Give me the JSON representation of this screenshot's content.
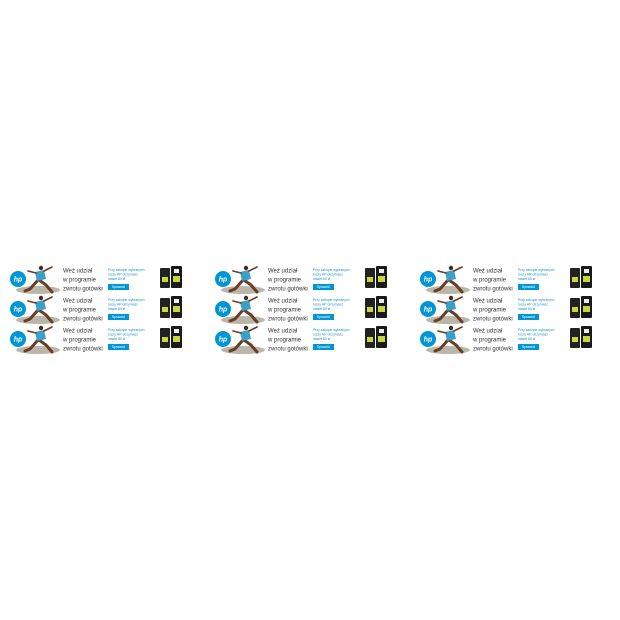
{
  "banners": [
    {
      "logo": "hp",
      "headline": [
        "Weź udział",
        "w programie",
        "zwrotu gotówki"
      ],
      "subtext": [
        "Przy zakupie wybranych",
        "tuszy HP otrzymasz",
        "nawet 80 zł"
      ],
      "button": "Sprawdź"
    },
    {
      "logo": "hp",
      "headline": [
        "Weź udział",
        "w programie",
        "zwrotu gotówki"
      ],
      "subtext": [
        "Przy zakupie wybranych",
        "tuszy HP otrzymasz",
        "nawet 80 zł"
      ],
      "button": "Sprawdź"
    },
    {
      "logo": "hp",
      "headline": [
        "Weź udział",
        "w programie",
        "zwrotu gotówki"
      ],
      "subtext": [
        "Przy zakupie wybranych",
        "tuszy HP otrzymasz",
        "nawet 80 zł"
      ],
      "button": "Sprawdź"
    },
    {
      "logo": "hp",
      "headline": [
        "Weź udział",
        "w programie",
        "zwrotu gotówki"
      ],
      "subtext": [
        "Przy zakupie wybranych",
        "tuszy HP otrzymasz",
        "nawet 80 zł"
      ],
      "button": "Sprawdź"
    },
    {
      "logo": "hp",
      "headline": [
        "Weź udział",
        "w programie",
        "zwrotu gotówki"
      ],
      "subtext": [
        "Przy zakupie wybranych",
        "tuszy HP otrzymasz",
        "nawet 80 zł"
      ],
      "button": "Sprawdź"
    },
    {
      "logo": "hp",
      "headline": [
        "Weź udział",
        "w programie",
        "zwrotu gotówki"
      ],
      "subtext": [
        "Przy zakupie wybranych",
        "tuszy HP otrzymasz",
        "nawet 80 zł"
      ],
      "button": "Sprawdź"
    },
    {
      "logo": "hp",
      "headline": [
        "Weź udział",
        "w programie",
        "zwrotu gotówki"
      ],
      "subtext": [
        "Przy zakupie wybranych",
        "tuszy HP otrzymasz",
        "nawet 80 zł"
      ],
      "button": "Sprawdź"
    },
    {
      "logo": "hp",
      "headline": [
        "Weź udział",
        "w programie",
        "zwrotu gotówki"
      ],
      "subtext": [
        "Przy zakupie wybranych",
        "tuszy HP otrzymasz",
        "nawet 80 zł"
      ],
      "button": "Sprawdź"
    },
    {
      "logo": "hp",
      "headline": [
        "Weź udział",
        "w programie",
        "zwrotu gotówki"
      ],
      "subtext": [
        "Przy zakupie wybranych",
        "tuszy HP otrzymasz",
        "nawet 80 zł"
      ],
      "button": "Sprawdź"
    }
  ]
}
